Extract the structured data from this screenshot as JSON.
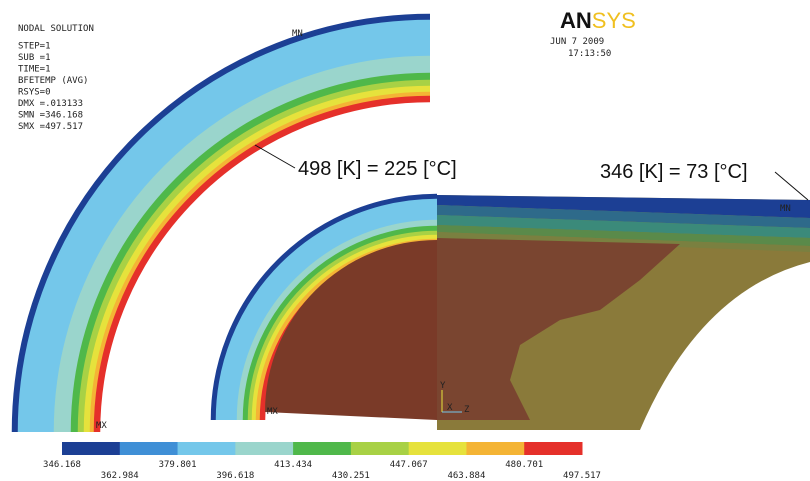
{
  "info": {
    "lines": [
      "NODAL SOLUTION",
      "STEP=1",
      "SUB =1",
      "TIME=1",
      "BFETEMP  (AVG)",
      "RSYS=0",
      "DMX =.013133",
      "SMN =346.168",
      "SMX =497.517"
    ]
  },
  "logo": {
    "bold": "AN",
    "light": "SYS",
    "date": "JUN  7 2009",
    "time": "17:13:50"
  },
  "annotations": [
    "498 [K] = 225 [°C]",
    "346 [K] = 73 [°C]"
  ],
  "markers": {
    "left_mn": "MN",
    "left_mx": "MX",
    "right_mn": "MN",
    "right_mx": "MX"
  },
  "triad": {
    "y": "Y",
    "x": "X",
    "z": "Z"
  },
  "legend": {
    "values": [
      "346.168",
      "362.984",
      "379.801",
      "396.618",
      "413.434",
      "430.251",
      "447.067",
      "463.884",
      "480.701",
      "497.517"
    ],
    "colors": [
      "#1c3f94",
      "#3f8fd6",
      "#74c7ea",
      "#9ad5cc",
      "#4fb84a",
      "#a8d145",
      "#e6e23c",
      "#f4b435",
      "#e5302a"
    ]
  }
}
